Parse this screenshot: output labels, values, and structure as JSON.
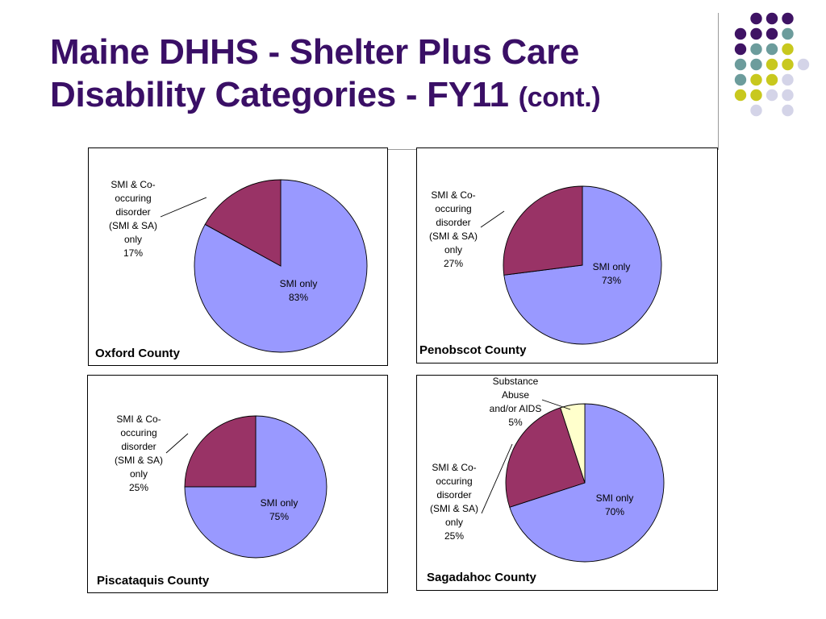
{
  "slide": {
    "title_line1": "Maine DHHS - Shelter Plus Care",
    "title_line2": "Disability Categories - FY11",
    "title_suffix": "(cont.)"
  },
  "colors": {
    "smi_only": "#9999ff",
    "smi_co": "#993366",
    "substance": "#ffffcc",
    "title": "#3a0f66",
    "dot_purple": "#3f1364",
    "dot_teal": "#6c9c9c",
    "dot_yellow": "#c8c81e",
    "dot_lav": "#d4d4e8"
  },
  "chart_data": [
    {
      "type": "pie",
      "title": "Oxford County",
      "slices": [
        {
          "label": [
            "SMI only",
            "83%"
          ],
          "value": 83,
          "color": "#9999ff"
        },
        {
          "label": [
            "SMI & Co-",
            "occuring",
            "disorder",
            "(SMI & SA)",
            "only",
            "17%"
          ],
          "value": 17,
          "color": "#993366"
        }
      ]
    },
    {
      "type": "pie",
      "title": "Penobscot County",
      "slices": [
        {
          "label": [
            "SMI only",
            "73%"
          ],
          "value": 73,
          "color": "#9999ff"
        },
        {
          "label": [
            "SMI & Co-",
            "occuring",
            "disorder",
            "(SMI & SA)",
            "only",
            "27%"
          ],
          "value": 27,
          "color": "#993366"
        }
      ]
    },
    {
      "type": "pie",
      "title": "Piscataquis County",
      "slices": [
        {
          "label": [
            "SMI only",
            "75%"
          ],
          "value": 75,
          "color": "#9999ff"
        },
        {
          "label": [
            "SMI & Co-",
            "occuring",
            "disorder",
            "(SMI & SA)",
            "only",
            "25%"
          ],
          "value": 25,
          "color": "#993366"
        }
      ]
    },
    {
      "type": "pie",
      "title": "Sagadahoc County",
      "slices": [
        {
          "label": [
            "SMI only",
            "70%"
          ],
          "value": 70,
          "color": "#9999ff"
        },
        {
          "label": [
            "SMI & Co-",
            "occuring",
            "disorder",
            "(SMI & SA)",
            "only",
            "25%"
          ],
          "value": 25,
          "color": "#993366"
        },
        {
          "label": [
            "Substance",
            "Abuse",
            "and/or AIDS",
            "5%"
          ],
          "value": 5,
          "color": "#ffffcc"
        }
      ]
    }
  ]
}
